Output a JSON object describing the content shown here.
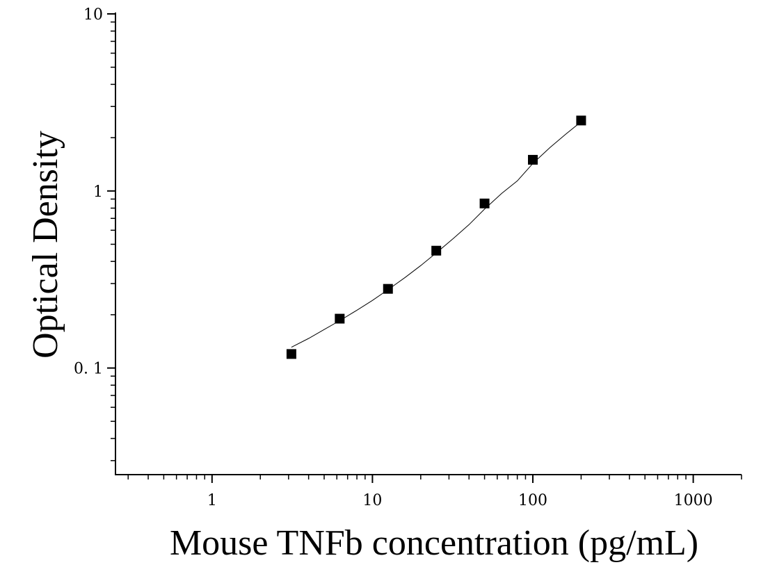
{
  "chart_data": {
    "type": "scatter",
    "title": "",
    "xlabel": "Mouse TNFb concentration (pg/mL)",
    "ylabel": "Optical Density",
    "x_scale": "log",
    "y_scale": "log",
    "xlim": [
      0.25,
      2000
    ],
    "ylim": [
      0.025,
      10
    ],
    "x_ticks": [
      1,
      10,
      100,
      1000
    ],
    "x_tick_labels": [
      "1",
      "10",
      "100",
      "1000"
    ],
    "y_ticks": [
      0.1,
      1,
      10
    ],
    "y_tick_labels": [
      "0. 1",
      "1",
      "10"
    ],
    "grid": false,
    "legend": "none",
    "series": [
      {
        "x": [
          3.125,
          6.25,
          12.5,
          25,
          50,
          100,
          200
        ],
        "y": [
          0.12,
          0.19,
          0.28,
          0.46,
          0.85,
          1.5,
          2.5
        ],
        "marker": "square",
        "color": "#000000"
      }
    ],
    "fit_curve": {
      "x": [
        3.125,
        4,
        5,
        6.25,
        8,
        10,
        12.5,
        16,
        20,
        25,
        32,
        40,
        50,
        64,
        80,
        100,
        128,
        160,
        200
      ],
      "y": [
        0.131,
        0.147,
        0.165,
        0.185,
        0.212,
        0.241,
        0.277,
        0.325,
        0.379,
        0.447,
        0.54,
        0.645,
        0.79,
        0.97,
        1.14,
        1.43,
        1.76,
        2.09,
        2.46
      ],
      "color": "#000000"
    }
  }
}
